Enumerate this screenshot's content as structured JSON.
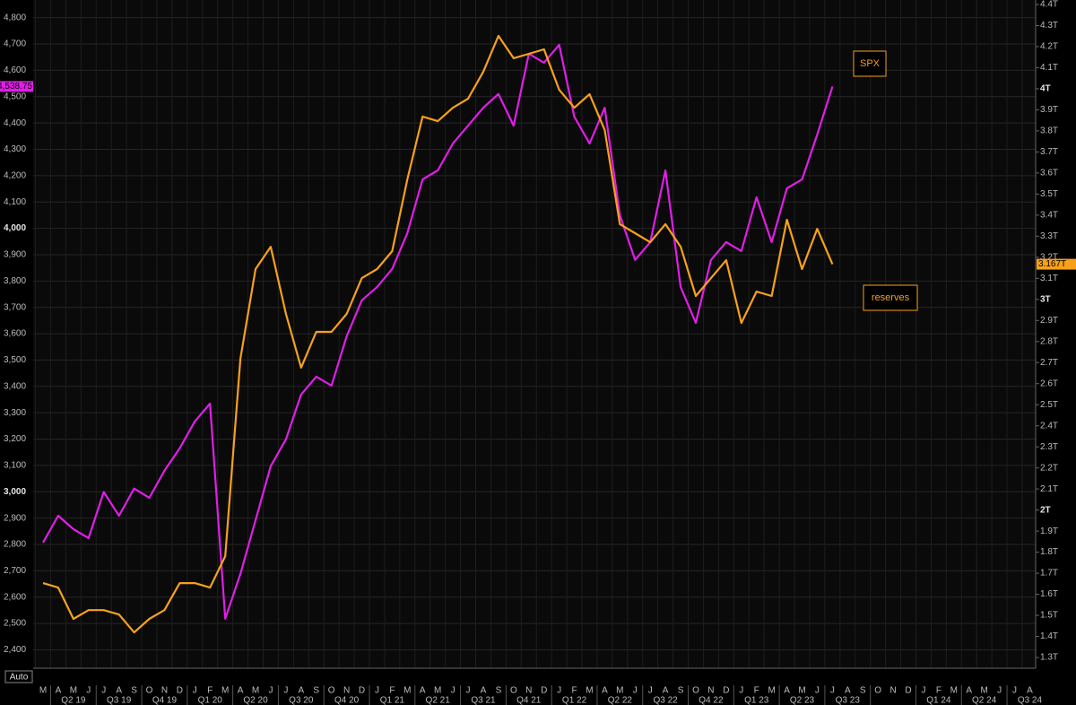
{
  "chart_data": {
    "type": "line",
    "x": [
      "2019-03",
      "2019-04",
      "2019-05",
      "2019-06",
      "2019-07",
      "2019-08",
      "2019-09",
      "2019-10",
      "2019-11",
      "2019-12",
      "2020-01",
      "2020-02",
      "2020-03",
      "2020-04",
      "2020-05",
      "2020-06",
      "2020-07",
      "2020-08",
      "2020-09",
      "2020-10",
      "2020-11",
      "2020-12",
      "2021-01",
      "2021-02",
      "2021-03",
      "2021-04",
      "2021-05",
      "2021-06",
      "2021-07",
      "2021-08",
      "2021-09",
      "2021-10",
      "2021-11",
      "2021-12",
      "2022-01",
      "2022-02",
      "2022-03",
      "2022-04",
      "2022-05",
      "2022-06",
      "2022-07",
      "2022-08",
      "2022-09",
      "2022-10",
      "2022-11",
      "2022-12",
      "2023-01",
      "2023-02",
      "2023-03",
      "2023-04",
      "2023-05",
      "2023-06",
      "2023-07",
      "2023-08",
      "2023-09",
      "2023-10",
      "2023-11",
      "2023-12",
      "2024-01",
      "2024-02",
      "2024-03",
      "2024-04",
      "2024-05",
      "2024-06",
      "2024-07",
      "2024-08"
    ],
    "month_labels": [
      "M",
      "A",
      "M",
      "J",
      "J",
      "A",
      "S",
      "O",
      "N",
      "D",
      "J",
      "F",
      "M",
      "A",
      "M",
      "J",
      "J",
      "A",
      "S",
      "O",
      "N",
      "D",
      "J",
      "F",
      "M",
      "A",
      "M",
      "J",
      "J",
      "A",
      "S",
      "O",
      "N",
      "D",
      "J",
      "F",
      "M",
      "A",
      "M",
      "J",
      "J",
      "A",
      "S",
      "O",
      "N",
      "D",
      "J",
      "F",
      "M",
      "A",
      "M",
      "J",
      "J",
      "A",
      "S",
      "O",
      "N",
      "D",
      "J",
      "F",
      "M",
      "A",
      "M",
      "J",
      "J",
      "A"
    ],
    "quarter_labels": [
      null,
      null,
      "Q2 19",
      null,
      null,
      "Q3 19",
      null,
      null,
      "Q4 19",
      null,
      null,
      "Q1 20",
      null,
      null,
      "Q2 20",
      null,
      null,
      "Q3 20",
      null,
      null,
      "Q4 20",
      null,
      null,
      "Q1 21",
      null,
      null,
      "Q2 21",
      null,
      null,
      "Q3 21",
      null,
      null,
      "Q4 21",
      null,
      null,
      "Q1 22",
      null,
      null,
      "Q2 22",
      null,
      null,
      "Q3 22",
      null,
      null,
      "Q4 22",
      null,
      null,
      "Q1 23",
      null,
      null,
      "Q2 23",
      null,
      null,
      "Q3 23",
      null,
      null,
      null,
      null,
      null,
      "Q1 24",
      null,
      null,
      "Q2 24",
      null,
      null,
      "Q3 24"
    ],
    "series": [
      {
        "name": "SPX",
        "color": "#e01ee8",
        "axis": "y",
        "values": [
          2807,
          2909,
          2858,
          2824,
          2999,
          2909,
          3012,
          2977,
          3080,
          3165,
          3267,
          3335,
          2518,
          2688,
          2892,
          3097,
          3199,
          3369,
          3437,
          3403,
          3590,
          3727,
          3777,
          3846,
          3982,
          4186,
          4220,
          4322,
          4390,
          4458,
          4510,
          4390,
          4663,
          4629,
          4697,
          4424,
          4322,
          4458,
          4050,
          3880,
          3948,
          4220,
          3777,
          3641,
          3880,
          3948,
          3914,
          4118,
          3948,
          4152,
          4186,
          4356,
          4538.75,
          null,
          null,
          null,
          null,
          null,
          null,
          null,
          null,
          null,
          null,
          null,
          null,
          null
        ],
        "value_labels": [
          null,
          null,
          null,
          null,
          null,
          null,
          null,
          null,
          null,
          null,
          null,
          null,
          null,
          null,
          null,
          null,
          null,
          null,
          null,
          null,
          null,
          null,
          null,
          null,
          null,
          null,
          null,
          null,
          null,
          null,
          null,
          null,
          null,
          null,
          null,
          null,
          null,
          null,
          null,
          null,
          null,
          null,
          null,
          null,
          null,
          null,
          null,
          null,
          null,
          null,
          null,
          null,
          "4,538.75",
          null,
          null,
          null,
          null,
          null,
          null,
          null,
          null,
          null,
          null,
          null,
          null,
          null
        ]
      },
      {
        "name": "reserves",
        "color": "#f7a11a",
        "axis": "y2",
        "values": [
          1.653,
          1.632,
          1.483,
          1.525,
          1.525,
          1.504,
          1.419,
          1.483,
          1.525,
          1.653,
          1.653,
          1.632,
          1.781,
          2.718,
          3.144,
          3.25,
          2.931,
          2.676,
          2.846,
          2.846,
          2.931,
          3.101,
          3.144,
          3.229,
          3.57,
          3.868,
          3.846,
          3.91,
          3.953,
          4.081,
          4.251,
          4.145,
          4.166,
          4.187,
          3.995,
          3.91,
          3.974,
          3.804,
          3.357,
          3.314,
          3.271,
          3.357,
          3.25,
          3.016,
          3.101,
          3.186,
          2.888,
          3.037,
          3.016,
          3.378,
          3.144,
          3.335,
          3.167,
          null,
          null,
          null,
          null,
          null,
          null,
          null,
          null,
          null,
          null,
          null,
          null,
          null
        ],
        "value_labels": [
          null,
          null,
          null,
          null,
          null,
          null,
          null,
          null,
          null,
          null,
          null,
          null,
          null,
          null,
          null,
          null,
          null,
          null,
          null,
          null,
          null,
          null,
          null,
          null,
          null,
          null,
          null,
          null,
          null,
          null,
          null,
          null,
          null,
          null,
          null,
          null,
          null,
          null,
          null,
          null,
          null,
          null,
          null,
          null,
          null,
          null,
          null,
          null,
          null,
          null,
          null,
          null,
          "3.167T",
          null,
          null,
          null,
          null,
          null,
          null,
          null,
          null,
          null,
          null,
          null,
          null,
          null
        ]
      }
    ],
    "ylim": [
      2330,
      4850
    ],
    "yticks": [
      {
        "value": 2400,
        "label": "2,400"
      },
      {
        "value": 2500,
        "label": "2,500"
      },
      {
        "value": 2600,
        "label": "2,600"
      },
      {
        "value": 2700,
        "label": "2,700"
      },
      {
        "value": 2800,
        "label": "2,800"
      },
      {
        "value": 2900,
        "label": "2,900"
      },
      {
        "value": 3000,
        "label": "3,000"
      },
      {
        "value": 3100,
        "label": "3,100"
      },
      {
        "value": 3200,
        "label": "3,200"
      },
      {
        "value": 3300,
        "label": "3,300"
      },
      {
        "value": 3400,
        "label": "3,400"
      },
      {
        "value": 3500,
        "label": "3,500"
      },
      {
        "value": 3600,
        "label": "3,600"
      },
      {
        "value": 3700,
        "label": "3,700"
      },
      {
        "value": 3800,
        "label": "3,800"
      },
      {
        "value": 3900,
        "label": "3,900"
      },
      {
        "value": 4000,
        "label": "4,000"
      },
      {
        "value": 4100,
        "label": "4,100"
      },
      {
        "value": 4200,
        "label": "4,200"
      },
      {
        "value": 4300,
        "label": "4,300"
      },
      {
        "value": 4400,
        "label": "4,400"
      },
      {
        "value": 4500,
        "label": "4,500"
      },
      {
        "value": 4600,
        "label": "4,600"
      },
      {
        "value": 4700,
        "label": "4,700"
      },
      {
        "value": 4800,
        "label": "4,800"
      }
    ],
    "y2lim": [
      1.249,
      4.4
    ],
    "y2ticks": [
      {
        "value": 1.3,
        "label": "1.3T"
      },
      {
        "value": 1.4,
        "label": "1.4T"
      },
      {
        "value": 1.5,
        "label": "1.5T"
      },
      {
        "value": 1.6,
        "label": "1.6T"
      },
      {
        "value": 1.7,
        "label": "1.7T"
      },
      {
        "value": 1.8,
        "label": "1.8T"
      },
      {
        "value": 1.9,
        "label": "1.9T"
      },
      {
        "value": 2,
        "label": "2T"
      },
      {
        "value": 2.1,
        "label": "2.1T"
      },
      {
        "value": 2.2,
        "label": "2.2T"
      },
      {
        "value": 2.3,
        "label": "2.3T"
      },
      {
        "value": 2.4,
        "label": "2.4T"
      },
      {
        "value": 2.5,
        "label": "2.5T"
      },
      {
        "value": 2.6,
        "label": "2.6T"
      },
      {
        "value": 2.7,
        "label": "2.7T"
      },
      {
        "value": 2.8,
        "label": "2.8T"
      },
      {
        "value": 2.9,
        "label": "2.9T"
      },
      {
        "value": 3,
        "label": "3T"
      },
      {
        "value": 3.1,
        "label": "3.1T"
      },
      {
        "value": 3.2,
        "label": "3.2T"
      },
      {
        "value": 3.3,
        "label": "3.3T"
      },
      {
        "value": 3.4,
        "label": "3.4T"
      },
      {
        "value": 3.5,
        "label": "3.5T"
      },
      {
        "value": 3.6,
        "label": "3.6T"
      },
      {
        "value": 3.7,
        "label": "3.7T"
      },
      {
        "value": 3.8,
        "label": "3.8T"
      },
      {
        "value": 3.9,
        "label": "3.9T"
      },
      {
        "value": 4,
        "label": "4T"
      },
      {
        "value": 4.1,
        "label": "4.1T"
      },
      {
        "value": 4.2,
        "label": "4.2T"
      },
      {
        "value": 4.3,
        "label": "4.3T"
      },
      {
        "value": 4.4,
        "label": "4.4T"
      }
    ],
    "grid": true
  },
  "toolbar": {
    "auto_button": "Auto"
  }
}
